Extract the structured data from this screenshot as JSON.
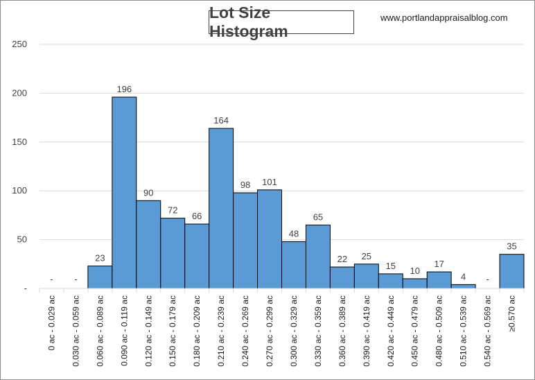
{
  "header": {
    "title": "Lot Size Histogram",
    "site": "www.portlandappraisalblog.com"
  },
  "chart_data": {
    "type": "bar",
    "title": "Lot Size Histogram",
    "xlabel": "",
    "ylabel": "",
    "ylim": [
      0,
      250
    ],
    "yticks": [
      0,
      50,
      100,
      150,
      200,
      250
    ],
    "ytick_labels": [
      "-",
      "50",
      "100",
      "150",
      "200",
      "250"
    ],
    "grid": "horizontal",
    "bar_color": "#5b9bd5",
    "categories": [
      "0 ac - 0.029 ac",
      "0.030 ac - 0.059 ac",
      "0.060 ac - 0.089 ac",
      "0.090 ac - 0.119 ac",
      "0.120 ac - 0.149 ac",
      "0.150 ac - 0.179 ac",
      "0.180 ac - 0.209 ac",
      "0.210 ac - 0.239 ac",
      "0.240 ac - 0.269 ac",
      "0.270 ac - 0.299 ac",
      "0.300 ac - 0.329 ac",
      "0.330 ac - 0.359 ac",
      "0.360 ac - 0.389 ac",
      "0.390 ac - 0.419 ac",
      "0.420 ac - 0.449 ac",
      "0.450 ac - 0.479 ac",
      "0.480 ac - 0.509 ac",
      "0.510 ac - 0.539 ac",
      "0.540 ac - 0.569 ac",
      "≥0.570 ac"
    ],
    "values": [
      0,
      0,
      23,
      196,
      90,
      72,
      66,
      164,
      98,
      101,
      48,
      65,
      22,
      25,
      15,
      10,
      17,
      4,
      0,
      35
    ],
    "data_labels": [
      "-",
      "-",
      "23",
      "196",
      "90",
      "72",
      "66",
      "164",
      "98",
      "101",
      "48",
      "65",
      "22",
      "25",
      "15",
      "10",
      "17",
      "4",
      "-",
      "35"
    ]
  }
}
